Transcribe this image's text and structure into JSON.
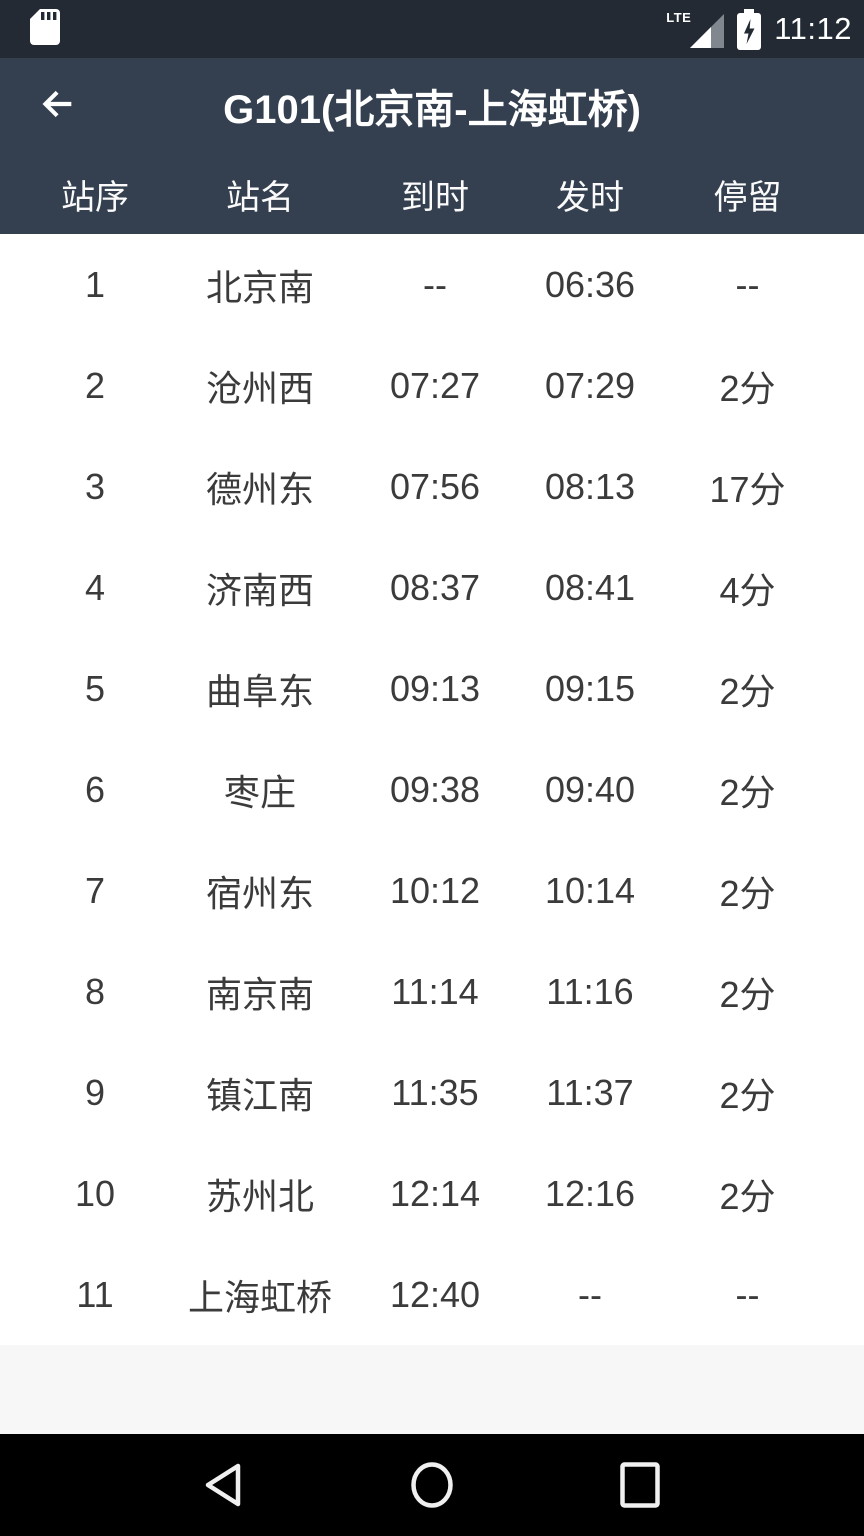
{
  "status_bar": {
    "time": "11:12",
    "network_label": "LTE",
    "sd_card_icon": "sd-card",
    "battery_icon": "battery-charging"
  },
  "header": {
    "title": "G101(北京南-上海虹桥)",
    "back_icon": "arrow-left"
  },
  "table": {
    "columns": [
      "站序",
      "站名",
      "到时",
      "发时",
      "停留"
    ],
    "rows": [
      {
        "seq": "1",
        "station": "北京南",
        "arrive": "--",
        "depart": "06:36",
        "stop": "--"
      },
      {
        "seq": "2",
        "station": "沧州西",
        "arrive": "07:27",
        "depart": "07:29",
        "stop": "2分"
      },
      {
        "seq": "3",
        "station": "德州东",
        "arrive": "07:56",
        "depart": "08:13",
        "stop": "17分"
      },
      {
        "seq": "4",
        "station": "济南西",
        "arrive": "08:37",
        "depart": "08:41",
        "stop": "4分"
      },
      {
        "seq": "5",
        "station": "曲阜东",
        "arrive": "09:13",
        "depart": "09:15",
        "stop": "2分"
      },
      {
        "seq": "6",
        "station": "枣庄",
        "arrive": "09:38",
        "depart": "09:40",
        "stop": "2分"
      },
      {
        "seq": "7",
        "station": "宿州东",
        "arrive": "10:12",
        "depart": "10:14",
        "stop": "2分"
      },
      {
        "seq": "8",
        "station": "南京南",
        "arrive": "11:14",
        "depart": "11:16",
        "stop": "2分"
      },
      {
        "seq": "9",
        "station": "镇江南",
        "arrive": "11:35",
        "depart": "11:37",
        "stop": "2分"
      },
      {
        "seq": "10",
        "station": "苏州北",
        "arrive": "12:14",
        "depart": "12:16",
        "stop": "2分"
      },
      {
        "seq": "11",
        "station": "上海虹桥",
        "arrive": "12:40",
        "depart": "--",
        "stop": "--"
      }
    ]
  },
  "nav_bar": {
    "back_icon": "back-triangle",
    "home_icon": "home-circle",
    "recents_icon": "recents-square"
  },
  "colors": {
    "status_bar_bg": "#242a34",
    "app_bar_bg": "#344050",
    "body_text": "#3b3b3b",
    "nav_bar_bg": "#000000",
    "nav_icon": "#f0f0f0",
    "footer_strip_bg": "#f7f7f8"
  }
}
